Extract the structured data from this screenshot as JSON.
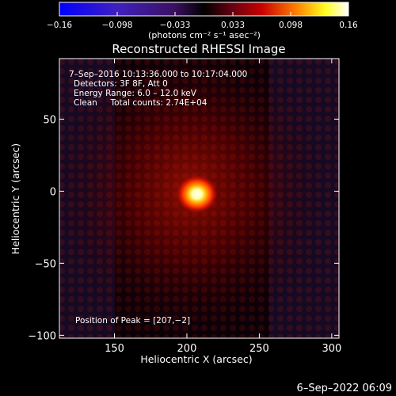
{
  "chart_data": {
    "type": "heatmap",
    "title": "Reconstructed RHESSI Image",
    "xlabel": "Heliocentric X (arcsec)",
    "ylabel": "Heliocentric Y (arcsec)",
    "xlim": [
      112,
      305
    ],
    "ylim": [
      -102,
      92
    ],
    "x_ticks": [
      150,
      200,
      250,
      300
    ],
    "y_ticks": [
      -100,
      -50,
      0,
      50
    ],
    "colorbar": {
      "tick_labels": [
        "−0.16",
        "−0.098",
        "−0.033",
        "0.033",
        "0.098",
        "0.16"
      ],
      "min": -0.16,
      "max": 0.16,
      "unit_label": "(photons cm⁻² s⁻¹ asec⁻²)"
    },
    "peak": {
      "x": 207,
      "y": -2
    },
    "annotations": {
      "time_range": "7–Sep–2016 10:13:36.000 to 10:17:04.000",
      "detectors": "Detectors: 3F 8F, Att 0",
      "energy": "Energy Range: 6.0 – 12.0 keV",
      "clean_counts": "Clean     Total counts: 2.74E+04",
      "peak_position": "Position of Peak = [207,−2]"
    },
    "footer_timestamp": "6–Sep–2022 06:09"
  }
}
